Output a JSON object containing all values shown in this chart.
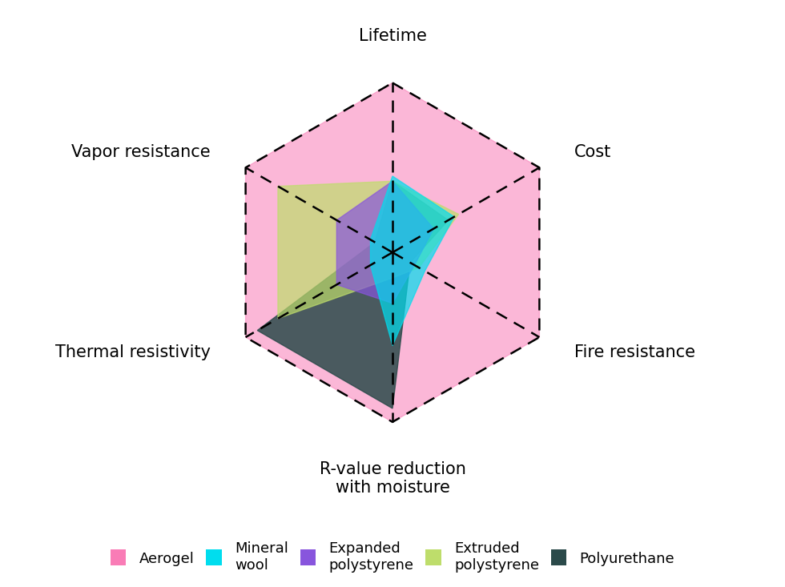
{
  "categories": [
    "Lifetime",
    "Cost",
    "Fire resistance",
    "R-value reduction\nwith moisture",
    "Thermal resistivity",
    "Vapor resistance"
  ],
  "num_vars": 6,
  "max_val": 1.0,
  "materials": [
    {
      "name": "Aerogel",
      "values": [
        1.0,
        1.0,
        1.0,
        1.0,
        1.0,
        1.0
      ],
      "color": "#F97CB6",
      "alpha": 0.55,
      "zorder": 1,
      "linewidth": 0
    },
    {
      "name": "Polyurethane",
      "values": [
        0.42,
        0.38,
        0.12,
        0.92,
        0.92,
        0.12
      ],
      "color": "#2B4A4A",
      "alpha": 0.85,
      "zorder": 2,
      "linewidth": 0
    },
    {
      "name": "Extruded polystyrene",
      "values": [
        0.42,
        0.45,
        0.18,
        0.15,
        0.78,
        0.78
      ],
      "color": "#BEDD6B",
      "alpha": 0.7,
      "zorder": 3,
      "linewidth": 0
    },
    {
      "name": "Expanded polystyrene",
      "values": [
        0.42,
        0.28,
        0.15,
        0.3,
        0.38,
        0.38
      ],
      "color": "#8855DD",
      "alpha": 0.7,
      "zorder": 4,
      "linewidth": 0
    },
    {
      "name": "Mineral wool",
      "values": [
        0.45,
        0.42,
        0.22,
        0.55,
        0.15,
        0.15
      ],
      "color": "#00DDEE",
      "alpha": 0.7,
      "zorder": 5,
      "linewidth": 0
    }
  ],
  "legend_entries": [
    {
      "label": "Aerogel",
      "color": "#F97CB6"
    },
    {
      "label": "Mineral\nwool",
      "color": "#00DDEE"
    },
    {
      "label": "Expanded\npolystyrene",
      "color": "#8855DD"
    },
    {
      "label": "Extruded\npolystyrene",
      "color": "#BEDD6B"
    },
    {
      "label": "Polyurethane",
      "color": "#2B4A4A"
    }
  ],
  "axis_label_fontsize": 15,
  "legend_fontsize": 13,
  "background_color": "#FFFFFF",
  "grid_linestyle": "--",
  "grid_linewidth": 1.8,
  "grid_color": "#000000"
}
